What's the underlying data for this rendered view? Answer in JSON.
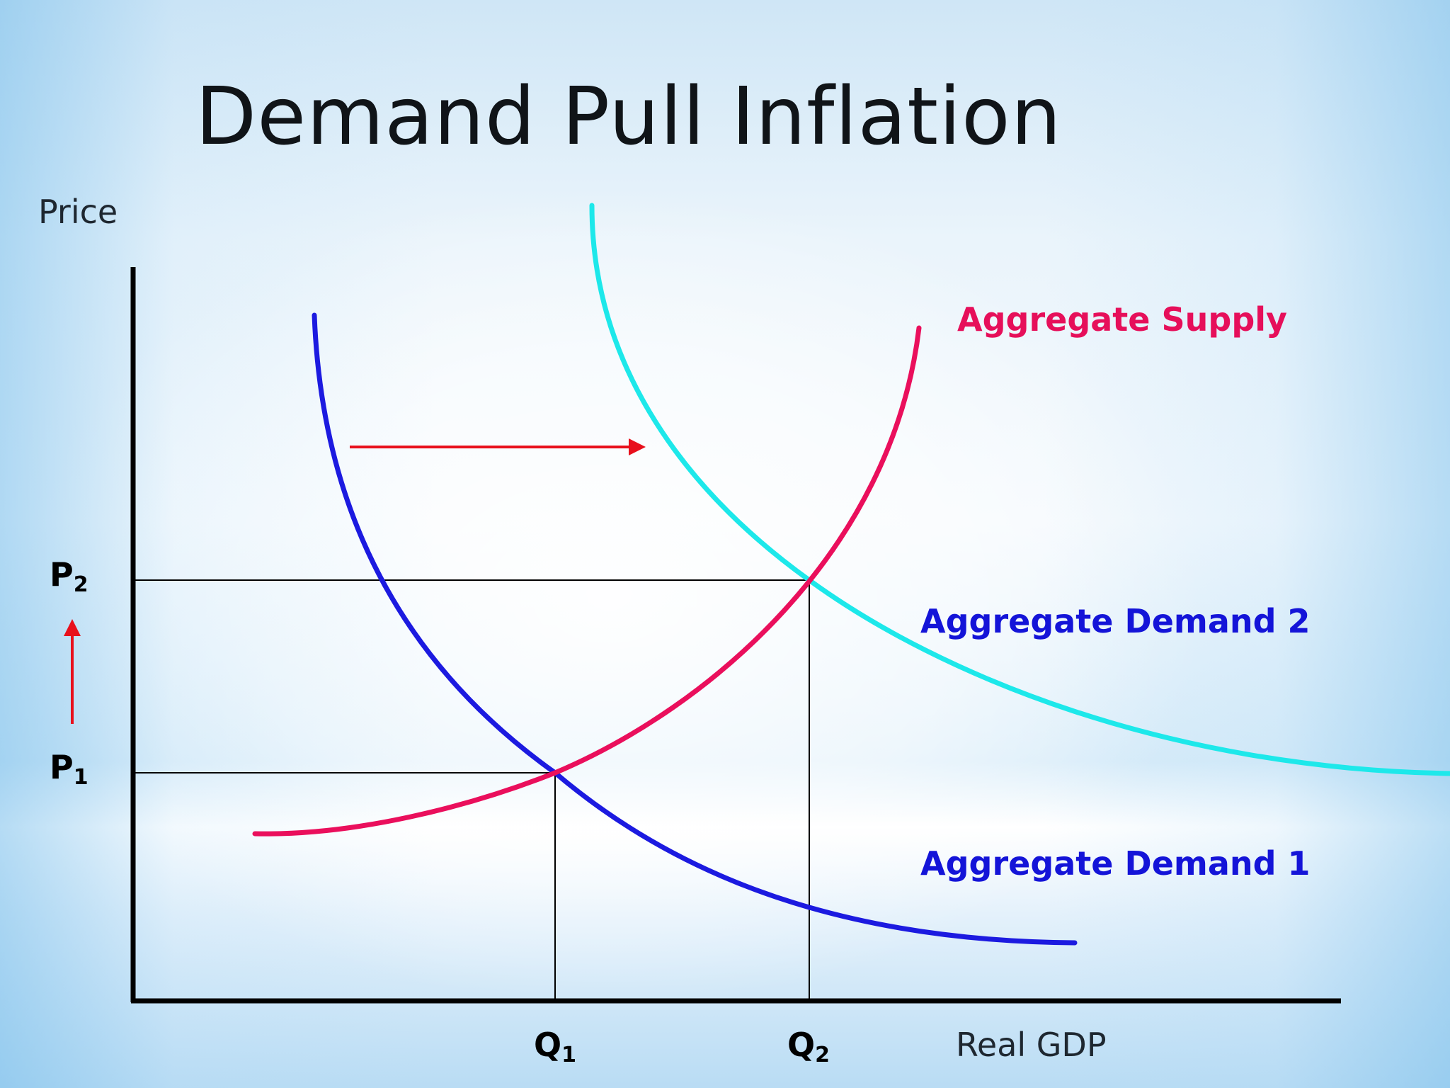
{
  "title": "Demand Pull Inflation",
  "axes": {
    "y_label": "Price",
    "x_label": "Real GDP"
  },
  "ticks": {
    "p1_main": "P",
    "p1_sub": "1",
    "p2_main": "P",
    "p2_sub": "2",
    "q1_main": "Q",
    "q1_sub": "1",
    "q2_main": "Q",
    "q2_sub": "2"
  },
  "curves": {
    "supply": {
      "label": "Aggregate Supply",
      "color": "#ea0f5c"
    },
    "demand1": {
      "label": "Aggregate Demand 1",
      "color": "#1c1ae0"
    },
    "demand2": {
      "label": "Aggregate Demand 2",
      "color": "#1de8ea"
    }
  },
  "label_colors": {
    "supply": "#e60f5a",
    "demand": "#1414d8"
  },
  "arrow_color": "#e8101c",
  "line_color": "#000000"
}
